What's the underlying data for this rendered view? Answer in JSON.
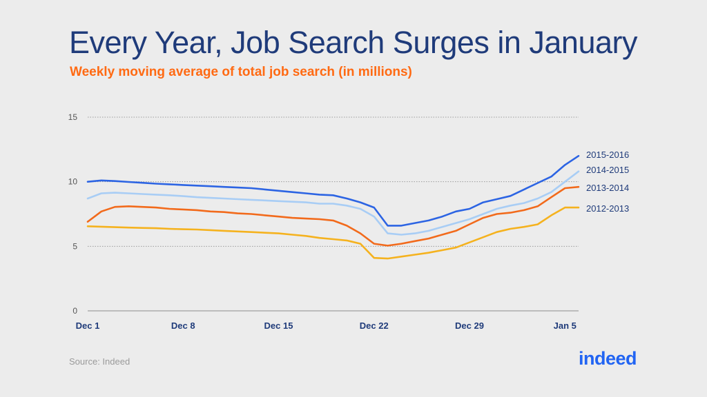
{
  "header": {
    "title": "Every Year, Job Search Surges in January",
    "subtitle": "Weekly moving average of total job search (in millions)"
  },
  "footer": {
    "source": "Source: Indeed",
    "logo_text": "indeed"
  },
  "colors": {
    "title": "#1f3b7a",
    "subtitle": "#ff6a13",
    "series": [
      "#2c64e3",
      "#a8cdf5",
      "#f26a1b",
      "#f5b21e"
    ]
  },
  "chart_data": {
    "type": "line",
    "x_ticks": [
      "Dec 1",
      "Dec 8",
      "Dec 15",
      "Dec 22",
      "Dec 29",
      "Jan 5"
    ],
    "x_tick_days": [
      0,
      7,
      14,
      21,
      28,
      35
    ],
    "ylim": [
      0,
      15
    ],
    "y_ticks": [
      0,
      5,
      10,
      15
    ],
    "grid": true,
    "legend": "right, labels at line ends",
    "series": [
      {
        "name": "2015-2016",
        "x": [
          0,
          1,
          2,
          3,
          4,
          5,
          6,
          7,
          8,
          9,
          10,
          11,
          12,
          13,
          14,
          15,
          16,
          17,
          18,
          19,
          20,
          21,
          22,
          23,
          24,
          25,
          26,
          27,
          28,
          29,
          30,
          31,
          32,
          33,
          34,
          35,
          36
        ],
        "y": [
          10.0,
          10.1,
          10.05,
          9.98,
          9.92,
          9.85,
          9.8,
          9.75,
          9.7,
          9.65,
          9.6,
          9.55,
          9.5,
          9.4,
          9.3,
          9.2,
          9.1,
          9.0,
          8.95,
          8.7,
          8.4,
          8.0,
          6.6,
          6.6,
          6.8,
          7.0,
          7.3,
          7.7,
          7.9,
          8.4,
          8.65,
          8.9,
          9.4,
          9.9,
          10.4,
          11.3,
          12.0
        ]
      },
      {
        "name": "2014-2015",
        "x": [
          0,
          1,
          2,
          3,
          4,
          5,
          6,
          7,
          8,
          9,
          10,
          11,
          12,
          13,
          14,
          15,
          16,
          17,
          18,
          19,
          20,
          21,
          22,
          23,
          24,
          25,
          26,
          27,
          28,
          29,
          30,
          31,
          32,
          33,
          34,
          35,
          36
        ],
        "y": [
          8.7,
          9.1,
          9.15,
          9.1,
          9.05,
          9.0,
          8.95,
          8.88,
          8.8,
          8.75,
          8.7,
          8.65,
          8.6,
          8.55,
          8.5,
          8.45,
          8.4,
          8.3,
          8.3,
          8.15,
          7.9,
          7.3,
          6.0,
          5.9,
          6.0,
          6.2,
          6.5,
          6.8,
          7.1,
          7.5,
          7.9,
          8.15,
          8.35,
          8.7,
          9.2,
          10.0,
          10.8
        ]
      },
      {
        "name": "2013-2014",
        "x": [
          0,
          1,
          2,
          3,
          4,
          5,
          6,
          7,
          8,
          9,
          10,
          11,
          12,
          13,
          14,
          15,
          16,
          17,
          18,
          19,
          20,
          21,
          22,
          23,
          24,
          25,
          26,
          27,
          28,
          29,
          30,
          31,
          32,
          33,
          34,
          35,
          36
        ],
        "y": [
          6.9,
          7.7,
          8.05,
          8.1,
          8.05,
          8.0,
          7.9,
          7.85,
          7.8,
          7.7,
          7.65,
          7.55,
          7.5,
          7.4,
          7.3,
          7.2,
          7.15,
          7.1,
          7.0,
          6.6,
          6.0,
          5.2,
          5.05,
          5.2,
          5.4,
          5.6,
          5.9,
          6.2,
          6.7,
          7.2,
          7.5,
          7.6,
          7.8,
          8.1,
          8.8,
          9.5,
          9.6
        ]
      },
      {
        "name": "2012-2013",
        "x": [
          0,
          1,
          2,
          3,
          4,
          5,
          6,
          7,
          8,
          9,
          10,
          11,
          12,
          13,
          14,
          15,
          16,
          17,
          18,
          19,
          20,
          21,
          22,
          23,
          24,
          25,
          26,
          27,
          28,
          29,
          30,
          31,
          32,
          33,
          34,
          35,
          36
        ],
        "y": [
          6.55,
          6.52,
          6.48,
          6.45,
          6.42,
          6.4,
          6.35,
          6.32,
          6.3,
          6.25,
          6.2,
          6.15,
          6.1,
          6.05,
          6.0,
          5.9,
          5.8,
          5.65,
          5.55,
          5.45,
          5.2,
          4.1,
          4.05,
          4.2,
          4.35,
          4.5,
          4.7,
          4.9,
          5.3,
          5.7,
          6.1,
          6.35,
          6.5,
          6.7,
          7.4,
          8.0,
          8.0
        ]
      }
    ]
  }
}
